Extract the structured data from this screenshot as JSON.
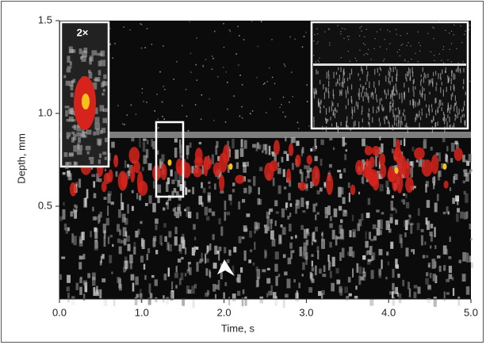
{
  "chart_data": {
    "type": "image",
    "xlabel": "Time, s",
    "ylabel": "Depth, mm",
    "xlim": [
      0,
      5
    ],
    "ylim": [
      0,
      1.5
    ],
    "xticks": [
      {
        "value": 0,
        "label": "0.0"
      },
      {
        "value": 1,
        "label": "1.0"
      },
      {
        "value": 2,
        "label": "2.0"
      },
      {
        "value": 3,
        "label": "3.0"
      },
      {
        "value": 4,
        "label": "4.0"
      },
      {
        "value": 5,
        "label": "5.0"
      }
    ],
    "yticks": [
      0.5,
      {
        "value": 1,
        "label": "1.0"
      },
      1.5
    ],
    "annotations": [
      "2×"
    ]
  }
}
